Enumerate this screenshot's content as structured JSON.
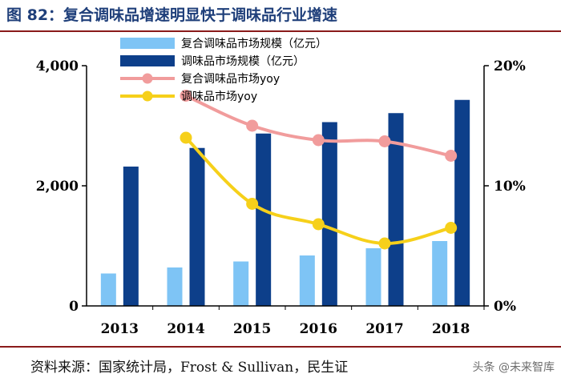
{
  "header": {
    "title": "图 82：复合调味品增速明显快于调味品行业增速"
  },
  "footer": {
    "source": "资料来源：国家统计局，Frost & Sullivan，民生证",
    "watermark": "头条 @未来智库"
  },
  "chart_data": {
    "type": "bar",
    "categories": [
      "2013",
      "2014",
      "2015",
      "2016",
      "2017",
      "2018"
    ],
    "series": [
      {
        "name": "复合调味品市场规模（亿元）",
        "type": "bar",
        "axis": "left",
        "color": "#7ec4f5",
        "values": [
          540,
          640,
          740,
          840,
          960,
          1080
        ]
      },
      {
        "name": "调味品市场规模（亿元）",
        "type": "bar",
        "axis": "left",
        "color": "#0d3f8a",
        "values": [
          2320,
          2630,
          2870,
          3060,
          3210,
          3430
        ]
      },
      {
        "name": "复合调味品市场yoy",
        "type": "line",
        "axis": "right",
        "color": "#f19c9c",
        "values": [
          null,
          17.5,
          15.0,
          13.8,
          13.7,
          12.5
        ]
      },
      {
        "name": "调味品市场yoy",
        "type": "line",
        "axis": "right",
        "color": "#f6d01a",
        "values": [
          null,
          14.0,
          8.5,
          6.8,
          5.2,
          6.5
        ]
      }
    ],
    "yleft": {
      "min": 0,
      "max": 4000,
      "ticks": [
        "0",
        "2,000",
        "4,000"
      ]
    },
    "yright": {
      "min": 0,
      "max": 20,
      "ticks": [
        "0%",
        "10%",
        "20%"
      ]
    },
    "legend": "top-left"
  }
}
